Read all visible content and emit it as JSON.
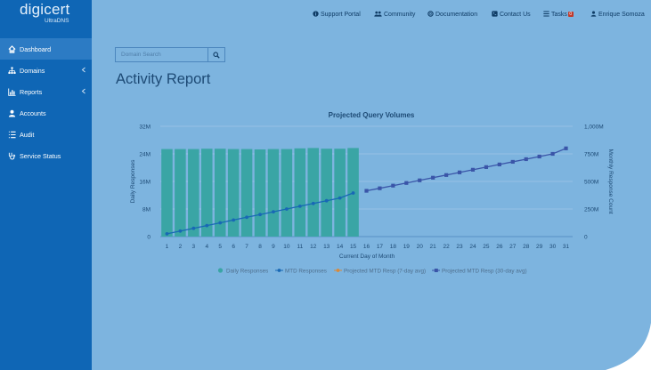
{
  "brand": {
    "name": "digicert",
    "product": "UltraDNS"
  },
  "sidebar": {
    "items": [
      {
        "label": "Dashboard",
        "icon": "home-icon",
        "active": true,
        "chevron": false
      },
      {
        "label": "Domains",
        "icon": "sitemap-icon",
        "active": false,
        "chevron": true
      },
      {
        "label": "Reports",
        "icon": "bar-chart-icon",
        "active": false,
        "chevron": true
      },
      {
        "label": "Accounts",
        "icon": "user-icon",
        "active": false,
        "chevron": false
      },
      {
        "label": "Audit",
        "icon": "list-icon",
        "active": false,
        "chevron": false
      },
      {
        "label": "Service Status",
        "icon": "stethoscope-icon",
        "active": false,
        "chevron": false
      }
    ]
  },
  "topbar": {
    "support_portal": "Support Portal",
    "community": "Community",
    "documentation": "Documentation",
    "contact_us": "Contact Us",
    "tasks": "Tasks",
    "tasks_count": "0",
    "user": "Enrique Somoza"
  },
  "search": {
    "placeholder": "Domain Search"
  },
  "page": {
    "title": "Activity Report"
  },
  "chart_data": {
    "type": "bar",
    "title": "Projected Query Volumes",
    "xlabel": "Current Day of Month",
    "ylabel": "Daily Responses",
    "y2label": "Monthly Response Count",
    "categories": [
      "1",
      "2",
      "3",
      "4",
      "5",
      "6",
      "7",
      "8",
      "9",
      "10",
      "11",
      "12",
      "13",
      "14",
      "15",
      "16",
      "17",
      "18",
      "19",
      "20",
      "21",
      "22",
      "23",
      "24",
      "25",
      "26",
      "27",
      "28",
      "29",
      "30",
      "31"
    ],
    "ylim": [
      0,
      32000000
    ],
    "yticks": [
      "0",
      "8M",
      "16M",
      "24M",
      "32M"
    ],
    "y2lim": [
      0,
      1000
    ],
    "y2ticks": [
      "0",
      "250M",
      "500M",
      "750M",
      "1,000M"
    ],
    "grid": true,
    "legend_position": "bottom",
    "series": [
      {
        "name": "Daily Responses",
        "type": "bar",
        "axis": "left",
        "color": "#3aa5a5",
        "values": [
          25.4,
          25.4,
          25.4,
          25.5,
          25.5,
          25.4,
          25.4,
          25.3,
          25.4,
          25.4,
          25.6,
          25.7,
          25.5,
          25.5,
          25.7,
          null,
          null,
          null,
          null,
          null,
          null,
          null,
          null,
          null,
          null,
          null,
          null,
          null,
          null,
          null,
          null
        ]
      },
      {
        "name": "MTD Responses",
        "type": "line",
        "axis": "right",
        "color": "#1868b5",
        "values": [
          25,
          50,
          75,
          100,
          125,
          150,
          175,
          200,
          225,
          250,
          275,
          300,
          325,
          350,
          395,
          null,
          null,
          null,
          null,
          null,
          null,
          null,
          null,
          null,
          null,
          null,
          null,
          null,
          null,
          null,
          null
        ]
      },
      {
        "name": "Projected MTD Resp (7-day avg)",
        "type": "line",
        "axis": "right",
        "color": "#d9893a",
        "values": [
          null,
          null,
          null,
          null,
          null,
          null,
          null,
          null,
          null,
          null,
          null,
          null,
          null,
          null,
          null,
          null,
          null,
          null,
          null,
          null,
          null,
          null,
          null,
          null,
          null,
          null,
          null,
          null,
          null,
          null,
          null
        ]
      },
      {
        "name": "Projected MTD Resp (30-day avg)",
        "type": "line",
        "axis": "right",
        "color": "#3a55a8",
        "values": [
          null,
          null,
          null,
          null,
          null,
          null,
          null,
          null,
          null,
          null,
          null,
          null,
          null,
          null,
          null,
          415,
          438,
          462,
          486,
          510,
          534,
          558,
          582,
          606,
          630,
          654,
          678,
          702,
          726,
          750,
          800
        ]
      }
    ]
  }
}
